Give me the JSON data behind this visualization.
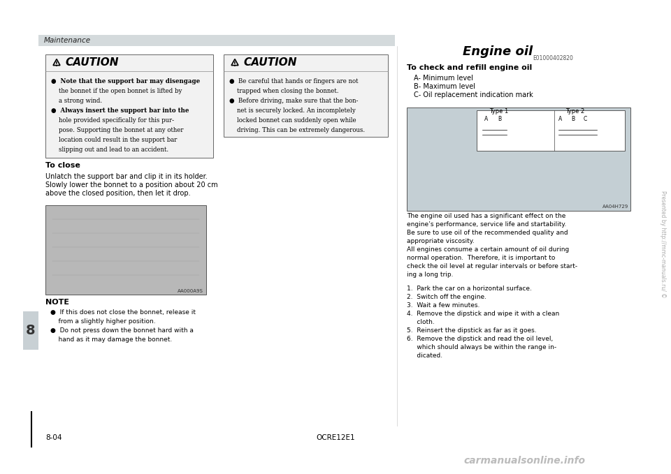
{
  "bg_color": "#ffffff",
  "header_bar_color": "#d4dadc",
  "header_text": "Maintenance",
  "left_tab_color": "#c8d0d4",
  "left_tab_number": "8",
  "bottom_left": "8-04",
  "bottom_center": "OCRE12E1",
  "bottom_watermark": "Presented by http://mmc-manuals.ru/ ©",
  "bottom_logo": "carmanualsonline.info",
  "caution1_title": "CAUTION",
  "caution1_lines": [
    "●  Note that the support bar may disengage",
    "    the bonnet if the open bonnet is lifted by",
    "    a strong wind.",
    "●  Always insert the support bar into the",
    "    hole provided specifically for this pur-",
    "    pose. Supporting the bonnet at any other",
    "    location could result in the support bar",
    "    slipping out and lead to an accident."
  ],
  "caution2_title": "CAUTION",
  "caution2_lines": [
    "●  Be careful that hands or fingers are not",
    "    trapped when closing the bonnet.",
    "●  Before driving, make sure that the bon-",
    "    net is securely locked. An incompletely",
    "    locked bonnet can suddenly open while",
    "    driving. This can be extremely dangerous."
  ],
  "close_title": "To close",
  "close_line1": "Unlatch the support bar and clip it in its holder.",
  "close_line2": "Slowly lower the bonnet to a position about 20 cm",
  "close_line3": "above the closed position, then let it drop.",
  "img_caption": "AA000A9S",
  "note_title": "NOTE",
  "note_lines": [
    "●  If this does not close the bonnet, release it",
    "    from a slightly higher position.",
    "●  Do not press down the bonnet hard with a",
    "    hand as it may damage the bonnet."
  ],
  "engine_title": "Engine oil",
  "engine_code": "E01000402820",
  "refill_title": "To check and refill engine oil",
  "refill_lines": [
    "A- Minimum level",
    "B- Maximum level",
    "C- Oil replacement indication mark"
  ],
  "engine_img_caption": "AA04H729",
  "engine_text_lines": [
    "The engine oil used has a significant effect on the",
    "engine’s performance, service life and startability.",
    "Be sure to use oil of the recommended quality and",
    "appropriate viscosity.",
    "All engines consume a certain amount of oil during",
    "normal operation.  Therefore, it is important to",
    "check the oil level at regular intervals or before start-",
    "ing a long trip."
  ],
  "steps": [
    "1.  Park the car on a horizontal surface.",
    "2.  Switch off the engine.",
    "3.  Wait a few minutes.",
    "4.  Remove the dipstick and wipe it with a clean",
    "     cloth.",
    "5.  Reinsert the dipstick as far as it goes.",
    "6.  Remove the dipstick and read the oil level,",
    "     which should always be within the range in-",
    "     dicated."
  ]
}
